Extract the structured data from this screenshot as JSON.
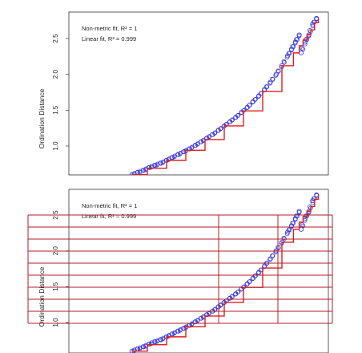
{
  "colors": {
    "points": "#3b3bd6",
    "fit_line": "#dd1f1f",
    "axis": "#333333",
    "overlay_grid": "#b01e2a"
  },
  "chart_data": [
    {
      "type": "scatter",
      "ylabel": "Ordination Distance",
      "xlabel": "",
      "yticks": [
        "1.0",
        "1.5",
        "2.0",
        "2.5"
      ],
      "ylim": [
        0.6,
        2.8
      ],
      "grid": false,
      "legend_position": "top-left",
      "legend": [
        "Non-metric fit, R² = 1",
        "Linear fit, R² = 0.999"
      ],
      "series": [
        {
          "kind": "points",
          "x": [
            0.02,
            0.05,
            0.08,
            0.11,
            0.14,
            0.17,
            0.2,
            0.23,
            0.26,
            0.29,
            0.32,
            0.35,
            0.38,
            0.41,
            0.44,
            0.47,
            0.5,
            0.53,
            0.56,
            0.59,
            0.62,
            0.65,
            0.68,
            0.71,
            0.74,
            0.77,
            0.8,
            0.83,
            0.85,
            0.87,
            0.89,
            0.9,
            0.92,
            0.94,
            0.96,
            0.98
          ],
          "y": [
            0.6,
            0.63,
            0.66,
            0.7,
            0.73,
            0.76,
            0.8,
            0.84,
            0.88,
            0.92,
            0.96,
            1.01,
            1.06,
            1.11,
            1.16,
            1.22,
            1.28,
            1.34,
            1.4,
            1.47,
            1.54,
            1.62,
            1.7,
            1.79,
            1.89,
            2.0,
            2.12,
            2.26,
            2.35,
            2.45,
            2.55,
            2.3,
            2.45,
            2.55,
            2.7,
            2.78
          ]
        },
        {
          "kind": "step",
          "x": [
            0.02,
            0.1,
            0.2,
            0.3,
            0.4,
            0.5,
            0.6,
            0.7,
            0.8,
            0.86,
            0.89,
            0.91,
            0.93,
            0.95,
            0.97,
            0.99
          ],
          "y": [
            0.6,
            0.69,
            0.8,
            0.94,
            1.09,
            1.28,
            1.49,
            1.76,
            2.12,
            2.3,
            2.4,
            2.48,
            2.55,
            2.62,
            2.72,
            2.78
          ]
        }
      ]
    },
    {
      "type": "scatter",
      "ylabel": "Ordination Distance",
      "xlabel": "",
      "yticks": [
        "1.0",
        "1.5",
        "2.0",
        "2.5"
      ],
      "ylim": [
        0.6,
        2.8
      ],
      "grid": false,
      "legend_position": "top-left",
      "legend": [
        "Non-metric fit, R² = 1",
        "Linear fit, R² = 0.999"
      ],
      "series": [
        {
          "kind": "points",
          "x": [
            0.02,
            0.05,
            0.08,
            0.11,
            0.14,
            0.17,
            0.2,
            0.23,
            0.26,
            0.29,
            0.32,
            0.35,
            0.38,
            0.41,
            0.44,
            0.47,
            0.5,
            0.53,
            0.56,
            0.59,
            0.62,
            0.65,
            0.68,
            0.71,
            0.74,
            0.77,
            0.8,
            0.83,
            0.85,
            0.87,
            0.89,
            0.9,
            0.92,
            0.94,
            0.96,
            0.98
          ],
          "y": [
            0.6,
            0.63,
            0.66,
            0.7,
            0.73,
            0.76,
            0.8,
            0.84,
            0.88,
            0.92,
            0.96,
            1.01,
            1.06,
            1.11,
            1.16,
            1.22,
            1.28,
            1.34,
            1.4,
            1.47,
            1.54,
            1.62,
            1.7,
            1.79,
            1.89,
            2.0,
            2.12,
            2.26,
            2.35,
            2.45,
            2.55,
            2.3,
            2.45,
            2.55,
            2.7,
            2.78
          ]
        },
        {
          "kind": "step",
          "x": [
            0.02,
            0.1,
            0.2,
            0.3,
            0.4,
            0.5,
            0.6,
            0.7,
            0.8,
            0.86,
            0.89,
            0.91,
            0.93,
            0.95,
            0.97,
            0.99
          ],
          "y": [
            0.6,
            0.69,
            0.8,
            0.94,
            1.09,
            1.28,
            1.49,
            1.76,
            2.12,
            2.3,
            2.4,
            2.48,
            2.55,
            2.62,
            2.72,
            2.78
          ]
        }
      ]
    }
  ]
}
